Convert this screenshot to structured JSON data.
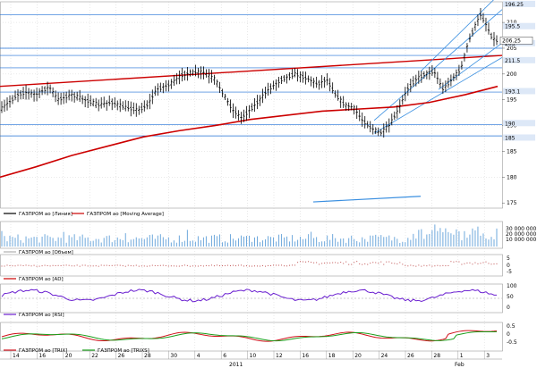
{
  "colors": {
    "price": "#000000",
    "ma": "#cc0000",
    "hline": "#1e6fd6",
    "trend": "#3a8fe0",
    "volume": "#6ea8dc",
    "rsi": "#6a1fd0",
    "trix": "#d0101a",
    "trixs": "#1b9e1b",
    "grid": "#c8c8c8",
    "dot": "#c05050",
    "label_bg": "#dde8f7"
  },
  "legends": [
    {
      "text": "ГАЗПРОМ ао [Линия]",
      "color": "#000000"
    },
    {
      "text": "ГАЗПРОМ ао [Moving Average]",
      "color": "#cc0000"
    },
    {
      "text": "ГАЗПРОМ ао [Объем]",
      "color": "#b0b0b0"
    },
    {
      "text": "ГАЗПРОМ ао [AD]",
      "color": "#cc0000"
    },
    {
      "text": "ГАЗПРОМ ао [RSI]",
      "color": "#6a1fd0"
    },
    {
      "text": "ГАЗПРОМ ао [TRIX]",
      "color": "#d0101a"
    },
    {
      "text": "ГАЗПРОМ ао [TRIXS]",
      "color": "#1b9e1b"
    }
  ],
  "x_axis": {
    "labels": [
      "14",
      "16",
      "20",
      "22",
      "26",
      "28",
      "30",
      "4",
      "6",
      "10",
      "12",
      "16",
      "18",
      "20",
      "24",
      "26",
      "28",
      "1",
      "3"
    ],
    "year_label": "2011",
    "month_label": "Feb"
  },
  "y_axis_main": [
    "175",
    "180",
    "185",
    "190",
    "195",
    "200",
    "205",
    "210"
  ],
  "price_labels": [
    "196.25",
    "195.5",
    "205",
    "211.5",
    "193.1",
    "190",
    "185"
  ],
  "last_price_label": "206.25",
  "volume_ticks": [
    "30 000 000",
    "20 000 000",
    "10 000 000"
  ],
  "ad_ticks": [
    "5",
    "0",
    "-5"
  ],
  "rsi_ticks": [
    "100",
    "50",
    "0"
  ],
  "trix_ticks": [
    "0.5",
    "0",
    "-0.5"
  ],
  "chart_data": {
    "type": "line",
    "y_range": [
      174,
      214
    ],
    "price_start": 192.5,
    "ma_start": 180.0,
    "trend_points": [
      [
        0,
        201.2
      ],
      [
        150,
        205.3
      ]
    ]
  }
}
